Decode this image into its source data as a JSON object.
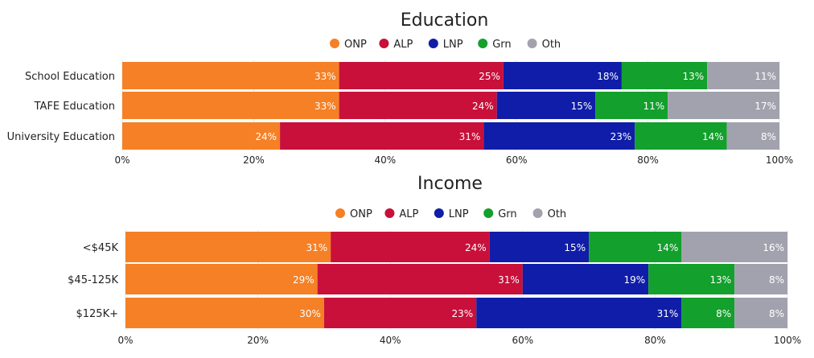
{
  "chart_data": [
    {
      "type": "bar",
      "orientation": "horizontal",
      "stacked": "percent",
      "title": "Education",
      "legend_position": "top-center",
      "categories": [
        "School Education",
        "TAFE Education",
        "University Education"
      ],
      "series": [
        {
          "name": "ONP",
          "color": "#F58025",
          "values": [
            33,
            33,
            24
          ]
        },
        {
          "name": "ALP",
          "color": "#C8103A",
          "values": [
            25,
            24,
            31
          ]
        },
        {
          "name": "LNP",
          "color": "#0F1DA8",
          "values": [
            18,
            15,
            23
          ]
        },
        {
          "name": "Grn",
          "color": "#13A02C",
          "values": [
            13,
            11,
            14
          ]
        },
        {
          "name": "Oth",
          "color": "#A2A2AE",
          "values": [
            11,
            17,
            8
          ]
        }
      ],
      "data_labels": [
        [
          "33%",
          "25%",
          "18%",
          "13%",
          "11%"
        ],
        [
          "33%",
          "24%",
          "15%",
          "11%",
          "17%"
        ],
        [
          "24%",
          "31%",
          "23%",
          "14%",
          "8%"
        ]
      ],
      "xlim": [
        0,
        100
      ],
      "xticks": [
        "0%",
        "20%",
        "40%",
        "60%",
        "80%",
        "100%"
      ],
      "grid": true
    },
    {
      "type": "bar",
      "orientation": "horizontal",
      "stacked": "percent",
      "title": "Income",
      "legend_position": "top-center",
      "categories": [
        "<$45K",
        "$45-125K",
        "$125K+"
      ],
      "series": [
        {
          "name": "ONP",
          "color": "#F58025",
          "values": [
            31,
            29,
            30
          ]
        },
        {
          "name": "ALP",
          "color": "#C8103A",
          "values": [
            24,
            31,
            23
          ]
        },
        {
          "name": "LNP",
          "color": "#0F1DA8",
          "values": [
            15,
            19,
            31
          ]
        },
        {
          "name": "Grn",
          "color": "#13A02C",
          "values": [
            14,
            13,
            8
          ]
        },
        {
          "name": "Oth",
          "color": "#A2A2AE",
          "values": [
            16,
            8,
            8
          ]
        }
      ],
      "data_labels": [
        [
          "31%",
          "24%",
          "15%",
          "14%",
          "16%"
        ],
        [
          "29%",
          "31%",
          "19%",
          "13%",
          "8%"
        ],
        [
          "30%",
          "23%",
          "31%",
          "8%",
          "8%"
        ]
      ],
      "xlim": [
        0,
        100
      ],
      "xticks": [
        "0%",
        "20%",
        "40%",
        "60%",
        "80%",
        "100%"
      ],
      "grid": true
    }
  ]
}
